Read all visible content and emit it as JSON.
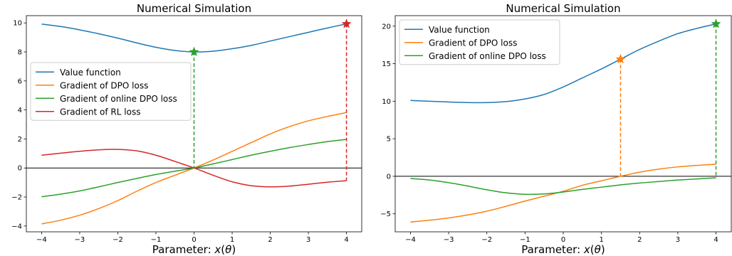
{
  "chart_data": [
    {
      "type": "line",
      "title": "Numerical Simulation",
      "xlabel": "Parameter: x(θ)",
      "xlabel_prefix": "Parameter: ",
      "xlabel_var": "x",
      "xlabel_arg": "θ",
      "ylabel": "",
      "xlim": [
        -4.4,
        4.4
      ],
      "ylim": [
        -4.4,
        10.5
      ],
      "xticks": [
        -4,
        -3,
        -2,
        -1,
        0,
        1,
        2,
        3,
        4
      ],
      "xtick_labels": [
        "−4",
        "−3",
        "−2",
        "−1",
        "0",
        "1",
        "2",
        "3",
        "4"
      ],
      "yticks": [
        -4,
        -2,
        0,
        2,
        4,
        6,
        8,
        10
      ],
      "ytick_labels": [
        "−4",
        "−2",
        "0",
        "2",
        "4",
        "6",
        "8",
        "10"
      ],
      "grid": false,
      "legend_position": "center-left",
      "x": [
        -4,
        -3.5,
        -3,
        -2.5,
        -2,
        -1.5,
        -1,
        -0.5,
        0,
        0.5,
        1,
        1.5,
        2,
        2.5,
        3,
        3.5,
        4
      ],
      "series": [
        {
          "name": "Value function",
          "color": "#1f77b4",
          "values": [
            9.92,
            9.75,
            9.52,
            9.25,
            8.95,
            8.62,
            8.32,
            8.1,
            8.0,
            8.05,
            8.22,
            8.45,
            8.75,
            9.05,
            9.35,
            9.65,
            9.93
          ]
        },
        {
          "name": "Gradient of DPO loss",
          "color": "#ff7f0e",
          "values": [
            -3.85,
            -3.6,
            -3.25,
            -2.8,
            -2.25,
            -1.6,
            -1.0,
            -0.5,
            0.0,
            0.55,
            1.15,
            1.75,
            2.35,
            2.85,
            3.25,
            3.55,
            3.82
          ]
        },
        {
          "name": "Gradient of online DPO loss",
          "color": "#2ca02c",
          "values": [
            -1.98,
            -1.8,
            -1.58,
            -1.3,
            -1.0,
            -0.72,
            -0.45,
            -0.22,
            0.0,
            0.28,
            0.58,
            0.88,
            1.15,
            1.4,
            1.62,
            1.82,
            1.97
          ]
        },
        {
          "name": "Gradient of RL loss",
          "color": "#d62728",
          "values": [
            0.88,
            1.02,
            1.15,
            1.25,
            1.28,
            1.18,
            0.88,
            0.45,
            0.0,
            -0.5,
            -0.95,
            -1.22,
            -1.3,
            -1.25,
            -1.12,
            -0.98,
            -0.88
          ]
        }
      ],
      "markers": [
        {
          "x": 0,
          "y": 8.0,
          "color": "#2ca02c"
        },
        {
          "x": 4,
          "y": 9.93,
          "color": "#d62728"
        }
      ],
      "drops": [
        {
          "x": 0,
          "from": 8.0,
          "to": 0,
          "color": "#2ca02c"
        },
        {
          "x": 4,
          "from": 9.93,
          "to": -0.88,
          "color": "#d62728"
        }
      ],
      "hline": 0
    },
    {
      "type": "line",
      "title": "Numerical Simulation",
      "xlabel": "Parameter: x(θ)",
      "xlabel_prefix": "Parameter: ",
      "xlabel_var": "x",
      "xlabel_arg": "θ",
      "ylabel": "",
      "xlim": [
        -4.4,
        4.4
      ],
      "ylim": [
        -7.4,
        21.4
      ],
      "xticks": [
        -4,
        -3,
        -2,
        -1,
        0,
        1,
        2,
        3,
        4
      ],
      "xtick_labels": [
        "−4",
        "−3",
        "−2",
        "−1",
        "0",
        "1",
        "2",
        "3",
        "4"
      ],
      "yticks": [
        -5,
        0,
        5,
        10,
        15,
        20
      ],
      "ytick_labels": [
        "−5",
        "0",
        "5",
        "10",
        "15",
        "20"
      ],
      "grid": false,
      "legend_position": "top-left",
      "x": [
        -4,
        -3.5,
        -3,
        -2.5,
        -2,
        -1.5,
        -1,
        -0.5,
        0,
        0.5,
        1,
        1.5,
        2,
        2.5,
        3,
        3.5,
        4
      ],
      "series": [
        {
          "name": "Value function",
          "color": "#1f77b4",
          "values": [
            10.1,
            10.0,
            9.9,
            9.82,
            9.82,
            9.95,
            10.3,
            10.9,
            11.9,
            13.1,
            14.3,
            15.6,
            16.9,
            18.0,
            19.0,
            19.7,
            20.3
          ]
        },
        {
          "name": "Gradient of DPO loss",
          "color": "#ff7f0e",
          "values": [
            -6.1,
            -5.85,
            -5.55,
            -5.15,
            -4.65,
            -4.0,
            -3.3,
            -2.65,
            -2.0,
            -1.2,
            -0.6,
            0.0,
            0.55,
            0.95,
            1.25,
            1.45,
            1.6
          ]
        },
        {
          "name": "Gradient of online DPO loss",
          "color": "#2ca02c",
          "values": [
            -0.3,
            -0.5,
            -0.85,
            -1.3,
            -1.8,
            -2.2,
            -2.4,
            -2.35,
            -2.1,
            -1.75,
            -1.45,
            -1.15,
            -0.9,
            -0.7,
            -0.5,
            -0.35,
            -0.2
          ]
        }
      ],
      "markers": [
        {
          "x": 1.5,
          "y": 15.6,
          "color": "#ff7f0e"
        },
        {
          "x": 4,
          "y": 20.3,
          "color": "#2ca02c"
        }
      ],
      "drops": [
        {
          "x": 1.5,
          "from": 15.6,
          "to": 0,
          "color": "#ff7f0e"
        },
        {
          "x": 4,
          "from": 20.3,
          "to": -0.2,
          "color": "#2ca02c"
        }
      ],
      "hline": 0
    }
  ]
}
